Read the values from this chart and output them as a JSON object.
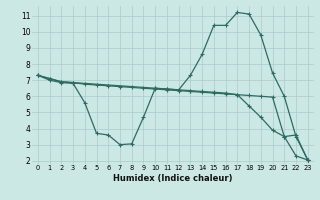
{
  "xlabel": "Humidex (Indice chaleur)",
  "bg_color": "#cce8e4",
  "grid_color": "#aacccc",
  "line_color": "#2d6b62",
  "xlim": [
    -0.5,
    23.5
  ],
  "ylim": [
    1.8,
    11.6
  ],
  "yticks": [
    2,
    3,
    4,
    5,
    6,
    7,
    8,
    9,
    10,
    11
  ],
  "xticks": [
    0,
    1,
    2,
    3,
    4,
    5,
    6,
    7,
    8,
    9,
    10,
    11,
    12,
    13,
    14,
    15,
    16,
    17,
    18,
    19,
    20,
    21,
    22,
    23
  ],
  "line1_x": [
    0,
    1,
    2,
    3,
    4,
    5,
    6,
    7,
    8,
    9,
    10,
    11,
    12,
    13,
    14,
    15,
    16,
    17,
    18,
    19,
    20,
    21,
    22,
    23
  ],
  "line1_y": [
    7.3,
    7.1,
    6.9,
    6.85,
    6.75,
    6.7,
    6.65,
    6.6,
    6.55,
    6.5,
    6.45,
    6.4,
    6.35,
    6.3,
    6.25,
    6.2,
    6.15,
    6.1,
    6.05,
    6.0,
    5.95,
    3.5,
    3.6,
    2.05
  ],
  "line2_x": [
    0,
    1,
    2,
    3,
    10,
    11,
    12,
    13,
    14,
    15,
    16,
    17,
    18,
    19,
    20,
    21,
    22,
    23
  ],
  "line2_y": [
    7.3,
    7.1,
    6.9,
    6.85,
    6.5,
    6.45,
    6.4,
    7.3,
    8.6,
    10.4,
    10.4,
    11.2,
    11.1,
    9.8,
    7.45,
    6.0,
    3.5,
    2.05
  ],
  "line3_x": [
    0,
    1,
    2,
    3,
    4,
    5,
    6,
    7,
    8,
    9,
    10,
    11,
    12,
    13,
    14,
    15,
    16,
    17,
    18,
    19,
    20,
    21,
    22,
    23
  ],
  "line3_y": [
    7.3,
    7.0,
    6.85,
    6.8,
    5.6,
    3.7,
    3.6,
    3.0,
    3.05,
    4.7,
    6.5,
    6.45,
    6.4,
    6.35,
    6.3,
    6.25,
    6.2,
    6.1,
    5.4,
    4.7,
    3.9,
    3.5,
    2.3,
    2.05
  ]
}
